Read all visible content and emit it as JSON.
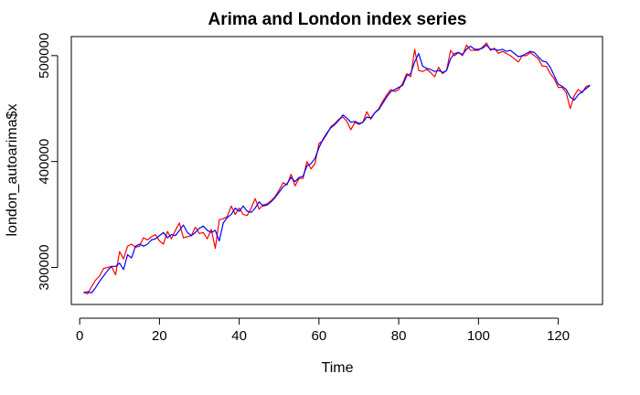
{
  "chart_data": {
    "type": "line",
    "title": "Arima and London index series",
    "xlabel": "Time",
    "ylabel": "london_autoarima$x",
    "xlim": [
      1,
      128
    ],
    "ylim": [
      265000,
      518000
    ],
    "x_ticks": [
      0,
      20,
      40,
      60,
      80,
      100,
      120
    ],
    "x_tick_labels": [
      "0",
      "20",
      "40",
      "60",
      "80",
      "100",
      "120"
    ],
    "y_ticks": [
      300000,
      400000,
      500000
    ],
    "y_tick_labels": [
      "300000",
      "400000",
      "500000"
    ],
    "grid": false,
    "legend": "none",
    "series": [
      {
        "color": "#ff0000",
        "x": [
          1,
          2,
          3,
          4,
          5,
          6,
          7,
          8,
          9,
          10,
          11,
          12,
          13,
          14,
          15,
          16,
          17,
          18,
          19,
          20,
          21,
          22,
          23,
          24,
          25,
          26,
          27,
          28,
          29,
          30,
          31,
          32,
          33,
          34,
          35,
          36,
          37,
          38,
          39,
          40,
          41,
          42,
          43,
          44,
          45,
          46,
          47,
          48,
          49,
          50,
          51,
          52,
          53,
          54,
          55,
          56,
          57,
          58,
          59,
          60,
          61,
          62,
          63,
          64,
          65,
          66,
          67,
          68,
          69,
          70,
          71,
          72,
          73,
          74,
          75,
          76,
          77,
          78,
          79,
          80,
          81,
          82,
          83,
          84,
          85,
          86,
          87,
          88,
          89,
          90,
          91,
          92,
          93,
          94,
          95,
          96,
          97,
          98,
          99,
          100,
          101,
          102,
          103,
          104,
          105,
          106,
          107,
          108,
          109,
          110,
          111,
          112,
          113,
          114,
          115,
          116,
          117,
          118,
          119,
          120,
          121,
          122,
          123,
          124,
          125,
          126,
          127,
          128
        ],
        "values": [
          277000,
          275000,
          282000,
          288000,
          292000,
          299000,
          300000,
          301000,
          293000,
          315000,
          308000,
          320000,
          322000,
          319000,
          320000,
          328000,
          326000,
          329000,
          331000,
          325000,
          322000,
          334000,
          327000,
          335000,
          342000,
          328000,
          329000,
          330000,
          338000,
          332000,
          333000,
          327000,
          336000,
          318000,
          345000,
          346000,
          348000,
          358000,
          350000,
          356000,
          350000,
          349000,
          356000,
          365000,
          355000,
          359000,
          360000,
          363000,
          367000,
          373000,
          380000,
          378000,
          388000,
          377000,
          384000,
          384000,
          400000,
          393000,
          398000,
          417000,
          420000,
          426000,
          433000,
          436000,
          440000,
          442000,
          438000,
          430000,
          437000,
          435000,
          437000,
          447000,
          440000,
          446000,
          450000,
          457000,
          463000,
          468000,
          466000,
          468000,
          474000,
          483000,
          480000,
          506000,
          486000,
          485000,
          487000,
          484000,
          480000,
          489000,
          483000,
          486000,
          505000,
          500000,
          503000,
          500000,
          510000,
          505000,
          505000,
          505000,
          508000,
          512000,
          505000,
          507000,
          502000,
          504000,
          502000,
          500000,
          497000,
          494000,
          500000,
          500000,
          503000,
          500000,
          497000,
          490000,
          490000,
          483000,
          478000,
          470000,
          470000,
          465000,
          450000,
          462000,
          468000,
          465000,
          471000,
          472000
        ]
      },
      {
        "color": "#0000ff",
        "x": [
          1,
          2,
          3,
          4,
          5,
          6,
          7,
          8,
          9,
          10,
          11,
          12,
          13,
          14,
          15,
          16,
          17,
          18,
          19,
          20,
          21,
          22,
          23,
          24,
          25,
          26,
          27,
          28,
          29,
          30,
          31,
          32,
          33,
          34,
          35,
          36,
          37,
          38,
          39,
          40,
          41,
          42,
          43,
          44,
          45,
          46,
          47,
          48,
          49,
          50,
          51,
          52,
          53,
          54,
          55,
          56,
          57,
          58,
          59,
          60,
          61,
          62,
          63,
          64,
          65,
          66,
          67,
          68,
          69,
          70,
          71,
          72,
          73,
          74,
          75,
          76,
          77,
          78,
          79,
          80,
          81,
          82,
          83,
          84,
          85,
          86,
          87,
          88,
          89,
          90,
          91,
          92,
          93,
          94,
          95,
          96,
          97,
          98,
          99,
          100,
          101,
          102,
          103,
          104,
          105,
          106,
          107,
          108,
          109,
          110,
          111,
          112,
          113,
          114,
          115,
          116,
          117,
          118,
          119,
          120,
          121,
          122,
          123,
          124,
          125,
          126,
          127,
          128
        ],
        "values": [
          276000,
          277000,
          276000,
          281000,
          287000,
          292000,
          297000,
          301000,
          301000,
          304000,
          298000,
          312000,
          309000,
          320000,
          322000,
          320000,
          322000,
          326000,
          327000,
          330000,
          333000,
          328000,
          331000,
          330000,
          335000,
          340000,
          333000,
          330000,
          333000,
          337000,
          339000,
          335000,
          333000,
          335000,
          325000,
          342000,
          347000,
          350000,
          356000,
          353000,
          358000,
          353000,
          352000,
          356000,
          362000,
          358000,
          359000,
          362000,
          366000,
          371000,
          376000,
          379000,
          385000,
          381000,
          385000,
          386000,
          396000,
          398000,
          403000,
          413000,
          421000,
          427000,
          432000,
          435000,
          439000,
          444000,
          441000,
          437000,
          438000,
          436000,
          437000,
          442000,
          441000,
          446000,
          449000,
          455000,
          461000,
          466000,
          468000,
          470000,
          472000,
          481000,
          483000,
          494000,
          502000,
          490000,
          488000,
          487000,
          485000,
          486000,
          484000,
          486000,
          497000,
          502000,
          503000,
          501000,
          506000,
          509000,
          506000,
          506000,
          507000,
          510000,
          506000,
          506000,
          505000,
          506000,
          504000,
          505000,
          502000,
          499000,
          500000,
          502000,
          504000,
          503000,
          499000,
          495000,
          494000,
          489000,
          481000,
          473000,
          471000,
          468000,
          461000,
          458000,
          463000,
          466000,
          469000,
          472000
        ]
      }
    ]
  }
}
